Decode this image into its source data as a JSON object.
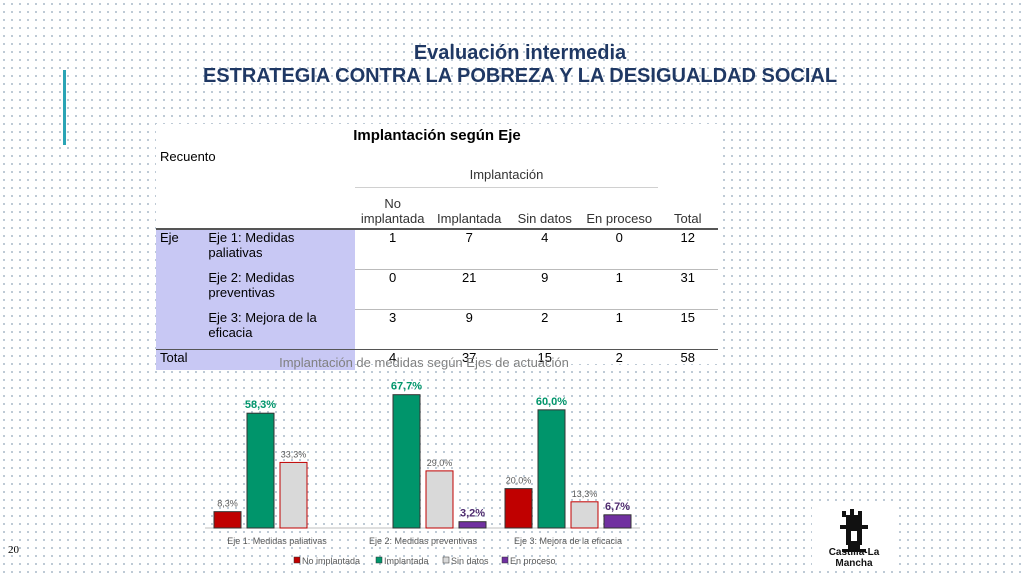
{
  "header": {
    "line1": "Evaluación intermedia",
    "line2": "ESTRATEGIA CONTRA LA POBREZA Y LA DESIGUALDAD SOCIAL"
  },
  "table": {
    "title": "Implantación según Eje",
    "subtitle": "Recuento",
    "group_header": "Implantación",
    "columns": [
      "No implantada",
      "Implantada",
      "Sin datos",
      "En proceso",
      "Total"
    ],
    "row_group": "Eje",
    "rows": [
      {
        "label": "Eje 1: Medidas paliativas",
        "values": [
          "1",
          "7",
          "4",
          "0",
          "12"
        ]
      },
      {
        "label": "Eje 2: Medidas preventivas",
        "values": [
          "0",
          "21",
          "9",
          "1",
          "31"
        ]
      },
      {
        "label": "Eje 3: Mejora de la eficacia",
        "values": [
          "3",
          "9",
          "2",
          "1",
          "15"
        ]
      }
    ],
    "total": {
      "label": "Total",
      "values": [
        "4",
        "37",
        "15",
        "2",
        "58"
      ]
    }
  },
  "chart_data": {
    "type": "bar",
    "title": "Implantación de medidas según Ejes de actuación",
    "categories": [
      "Eje 1: Medidas paliativas",
      "Eje 2: Medidas preventivas",
      "Eje 3: Mejora de la eficacia"
    ],
    "series": [
      {
        "name": "No implantada",
        "color": "#c00000",
        "values": [
          8.3,
          0,
          20.0
        ],
        "labels": [
          "8,3%",
          "",
          "20,0%"
        ]
      },
      {
        "name": "Implantada",
        "color": "#00956b",
        "values": [
          58.3,
          67.7,
          60.0
        ],
        "labels": [
          "58,3%",
          "67,7%",
          "60,0%"
        ]
      },
      {
        "name": "Sin datos",
        "color": "#d9d9d9",
        "values": [
          33.3,
          29.0,
          13.3
        ],
        "labels": [
          "33,3%",
          "29,0%",
          "13,3%"
        ]
      },
      {
        "name": "En proceso",
        "color": "#7030a0",
        "values": [
          0,
          3.2,
          6.7
        ],
        "labels": [
          "",
          "3,2%",
          "6,7%"
        ]
      }
    ],
    "ylim": [
      0,
      70
    ],
    "legend": "bottom"
  },
  "page_number": "20",
  "logo": {
    "text": "Castilla-La Mancha"
  }
}
